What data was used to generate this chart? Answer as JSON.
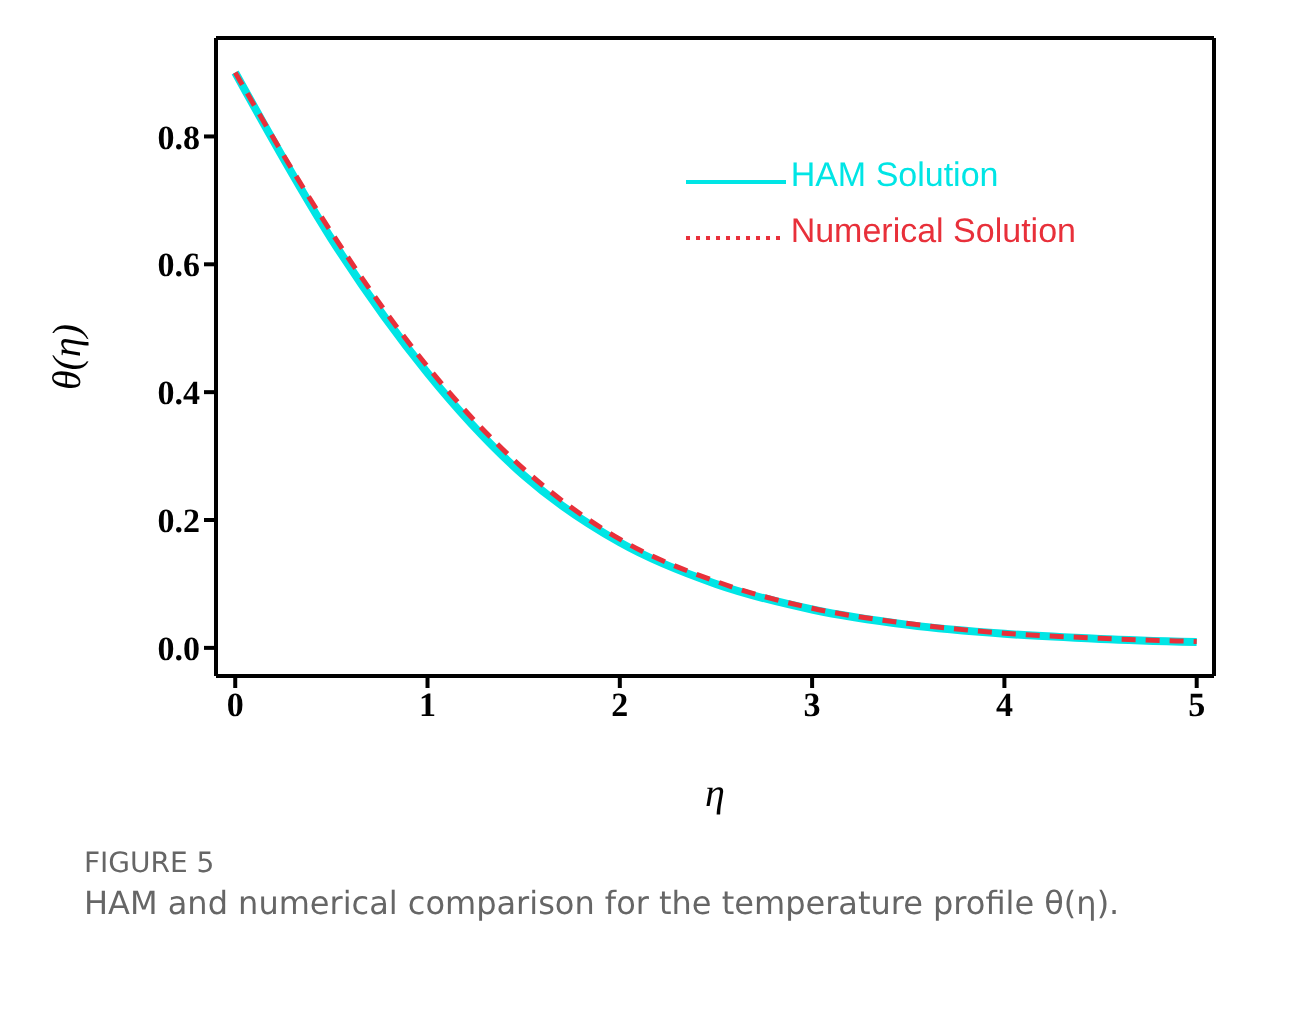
{
  "chart_data": {
    "type": "line",
    "xlabel": "η",
    "ylabel": "θ(η)",
    "x": [
      0,
      0.5,
      1,
      1.5,
      2,
      2.5,
      3,
      3.5,
      4,
      4.5,
      5
    ],
    "series": [
      {
        "name": "HAM Solution",
        "color": "#00e5e5",
        "line_style": "solid",
        "values": [
          0.9,
          0.64,
          0.43,
          0.27,
          0.165,
          0.1,
          0.06,
          0.036,
          0.022,
          0.014,
          0.009
        ]
      },
      {
        "name": "Numerical Solution",
        "color": "#e8303a",
        "line_style": "dashed",
        "values": [
          0.9,
          0.65,
          0.44,
          0.28,
          0.17,
          0.104,
          0.062,
          0.038,
          0.023,
          0.015,
          0.01
        ]
      }
    ],
    "xlim": [
      -0.1,
      5.09
    ],
    "xticks": [
      0,
      1,
      2,
      3,
      4,
      5
    ],
    "ylim": [
      -0.044,
      0.954
    ],
    "yticks": [
      {
        "value": 0,
        "label": "0.0"
      },
      0.2,
      0.4,
      0.6,
      0.8
    ],
    "grid": false,
    "legend": "top right",
    "marker": "none",
    "annotations": [
      "FIGURE 5",
      "HAM and numerical comparison for the temperature profile θ(η)."
    ]
  }
}
